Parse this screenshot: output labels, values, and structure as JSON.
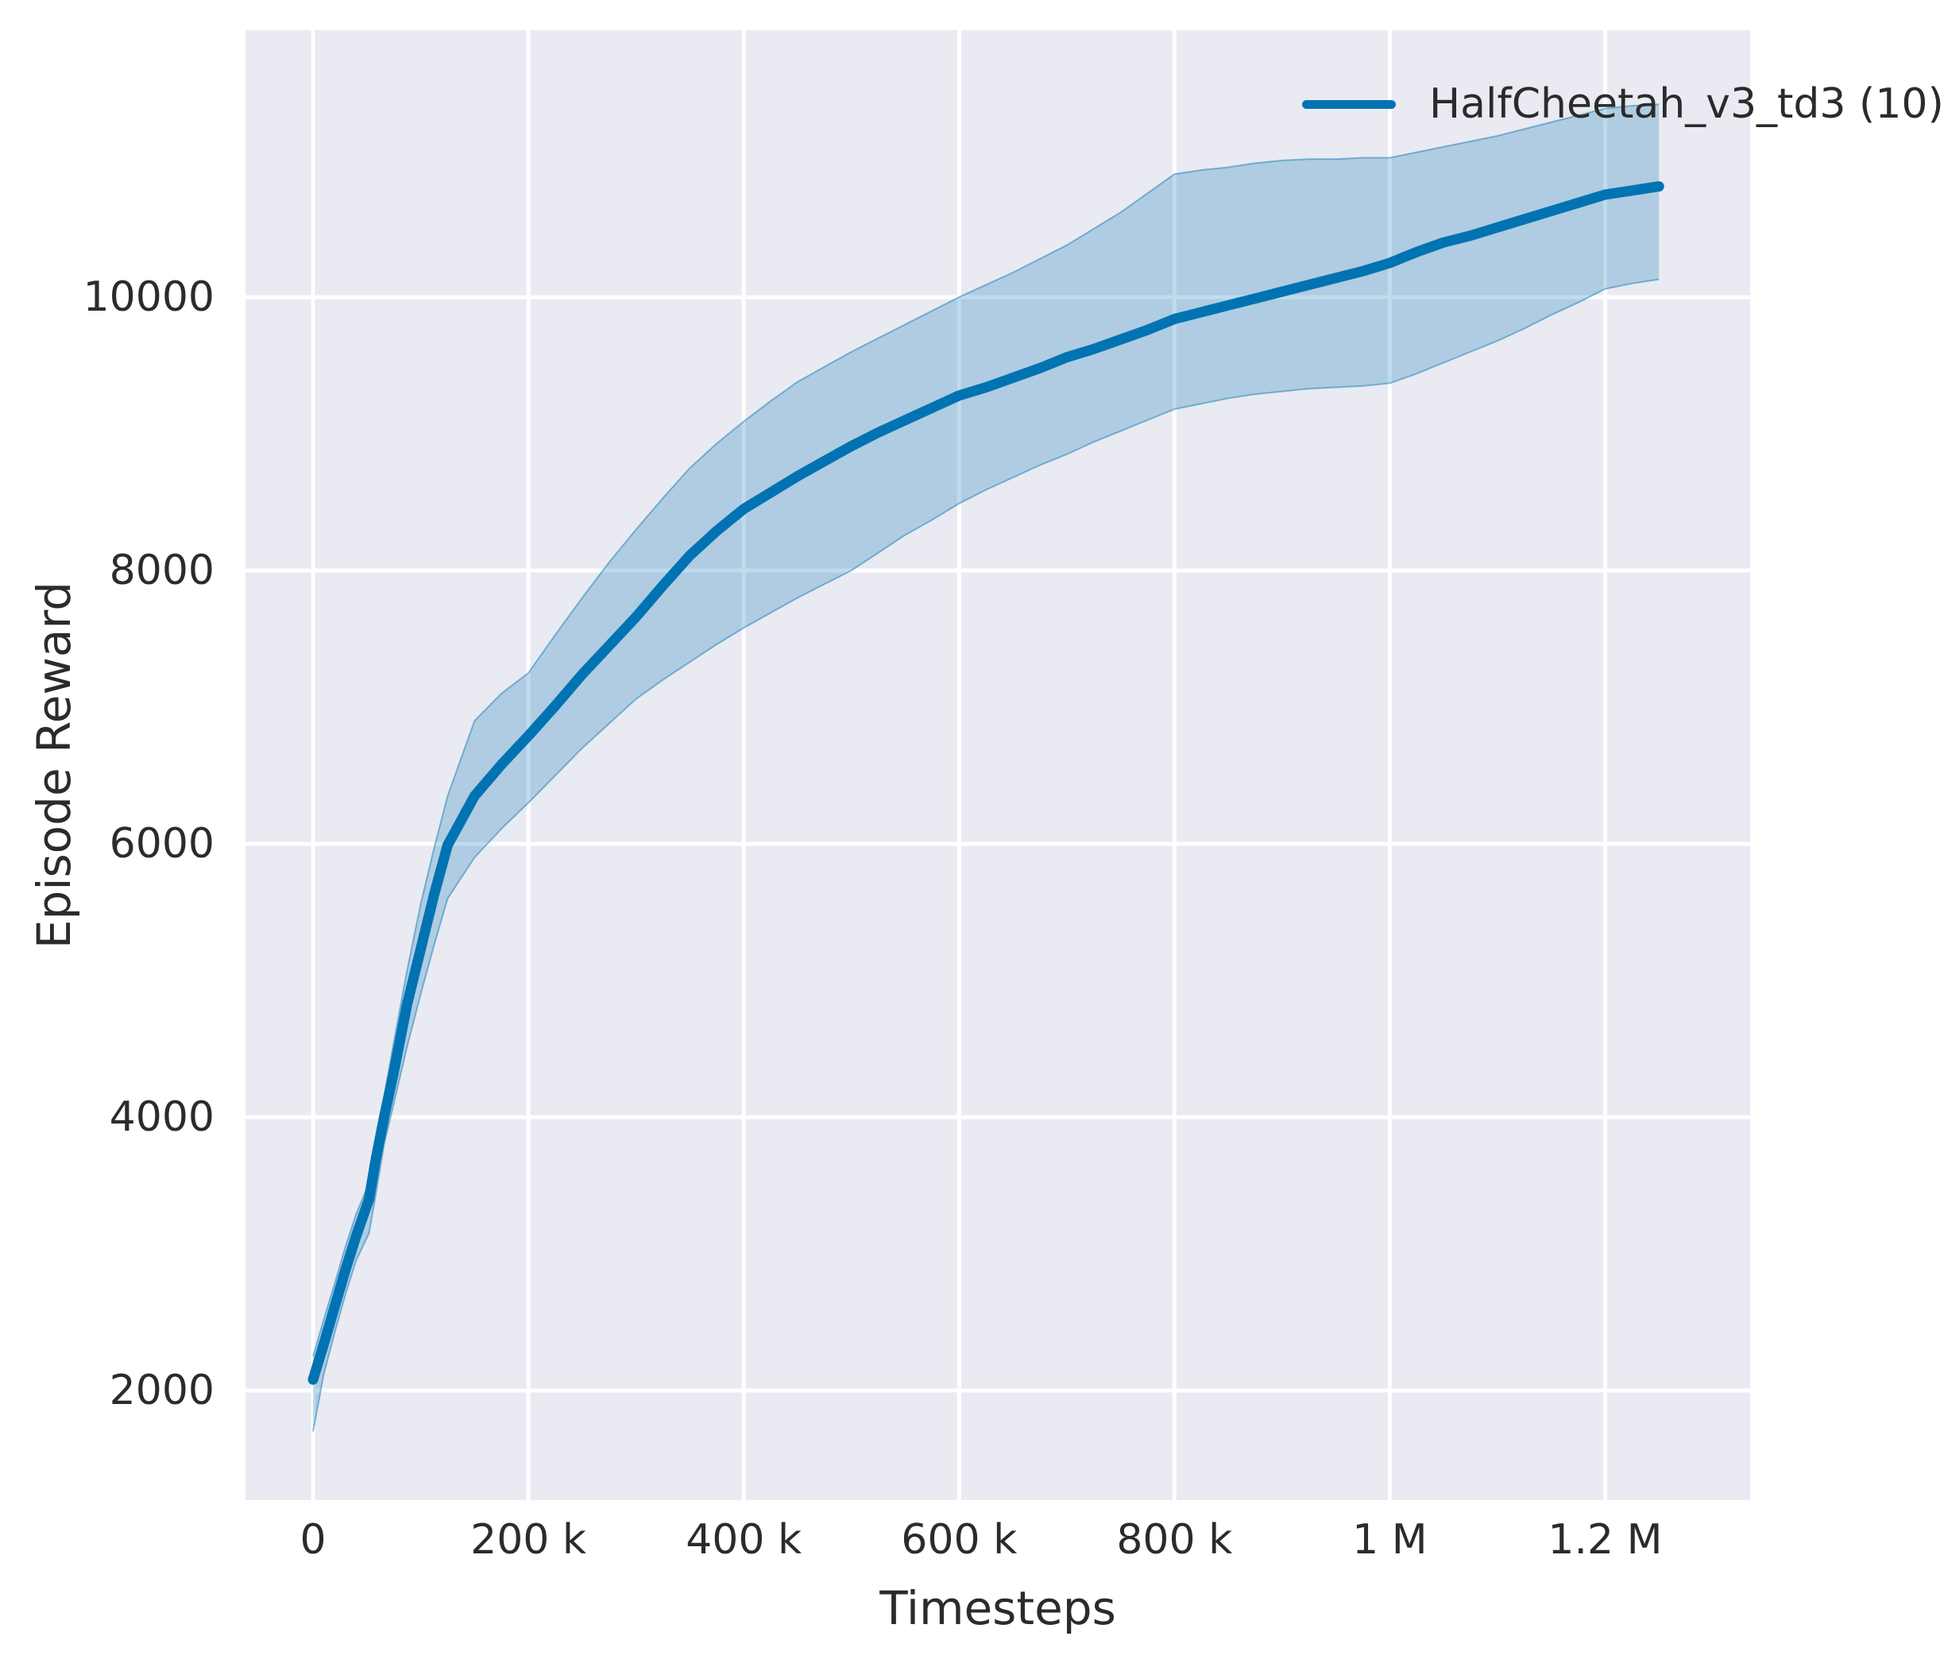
{
  "figure": {
    "background": "#ffffff"
  },
  "axes": {
    "background": "#eaeaf2",
    "grid_color": "#ffffff",
    "text_color": "#2b2b2b"
  },
  "legend": {
    "label": "HalfCheetah_v3_td3 (10)",
    "line_color": "#0173b2"
  },
  "chart_data": {
    "type": "line",
    "title": "",
    "xlabel": "Timesteps",
    "ylabel": "Episode Reward",
    "grid": true,
    "legend_position": "upper right",
    "xlim": [
      -62730,
      1334690
    ],
    "ylim": [
      1198,
      11953
    ],
    "xticks": {
      "values": [
        0,
        200000,
        400000,
        600000,
        800000,
        1000000,
        1200000
      ],
      "labels": [
        "0",
        "200 k",
        "400 k",
        "600 k",
        "800 k",
        "1 M",
        "1.2 M"
      ]
    },
    "yticks": {
      "values": [
        2000,
        4000,
        6000,
        8000,
        10000
      ],
      "labels": [
        "2000",
        "4000",
        "6000",
        "8000",
        "10000"
      ]
    },
    "series": [
      {
        "name": "HalfCheetah_v3_td3 (10)",
        "color": "#0173b2",
        "band_alpha": 0.25,
        "x": [
          0,
          10000,
          20000,
          30000,
          40000,
          52000,
          58000,
          66000,
          75000,
          87500,
          100000,
          112500,
          125000,
          150000,
          175000,
          200000,
          225000,
          250000,
          275000,
          300000,
          325000,
          350000,
          375000,
          400000,
          425000,
          450000,
          475000,
          500000,
          525000,
          550000,
          575000,
          600000,
          625000,
          650000,
          675000,
          700000,
          725000,
          750000,
          775000,
          800000,
          825000,
          850000,
          875000,
          900000,
          925000,
          950000,
          975000,
          1000000,
          1025000,
          1050000,
          1075000,
          1100000,
          1125000,
          1150000,
          1175000,
          1200000,
          1225000,
          1250000
        ],
        "mean": [
          2080,
          2340,
          2610,
          2880,
          3130,
          3400,
          3680,
          4000,
          4330,
          4830,
          5230,
          5630,
          5990,
          6350,
          6580,
          6790,
          7010,
          7240,
          7450,
          7660,
          7890,
          8110,
          8290,
          8450,
          8570,
          8690,
          8800,
          8910,
          9010,
          9100,
          9190,
          9280,
          9340,
          9410,
          9480,
          9560,
          9620,
          9690,
          9760,
          9840,
          9890,
          9940,
          9990,
          10040,
          10090,
          10140,
          10190,
          10250,
          10330,
          10400,
          10450,
          10510,
          10570,
          10630,
          10690,
          10750,
          10780,
          10810
        ],
        "band_lower": [
          1700,
          2120,
          2420,
          2700,
          2950,
          3150,
          3420,
          3800,
          4100,
          4520,
          4900,
          5260,
          5600,
          5900,
          6110,
          6300,
          6500,
          6700,
          6880,
          7060,
          7200,
          7330,
          7460,
          7580,
          7690,
          7800,
          7900,
          8000,
          8130,
          8260,
          8370,
          8490,
          8590,
          8680,
          8770,
          8850,
          8940,
          9020,
          9100,
          9180,
          9220,
          9260,
          9290,
          9310,
          9330,
          9340,
          9350,
          9370,
          9440,
          9520,
          9600,
          9680,
          9770,
          9870,
          9960,
          10060,
          10100,
          10130
        ],
        "band_upper": [
          2250,
          2520,
          2780,
          3050,
          3290,
          3520,
          3800,
          4150,
          4550,
          5080,
          5560,
          5970,
          6350,
          6900,
          7100,
          7250,
          7530,
          7800,
          8060,
          8300,
          8530,
          8750,
          8930,
          9090,
          9240,
          9380,
          9490,
          9600,
          9700,
          9800,
          9900,
          10000,
          10090,
          10180,
          10280,
          10380,
          10500,
          10620,
          10760,
          10900,
          10930,
          10950,
          10980,
          11000,
          11010,
          11010,
          11020,
          11020,
          11060,
          11100,
          11140,
          11180,
          11230,
          11280,
          11330,
          11380,
          11400,
          11410
        ]
      }
    ]
  }
}
